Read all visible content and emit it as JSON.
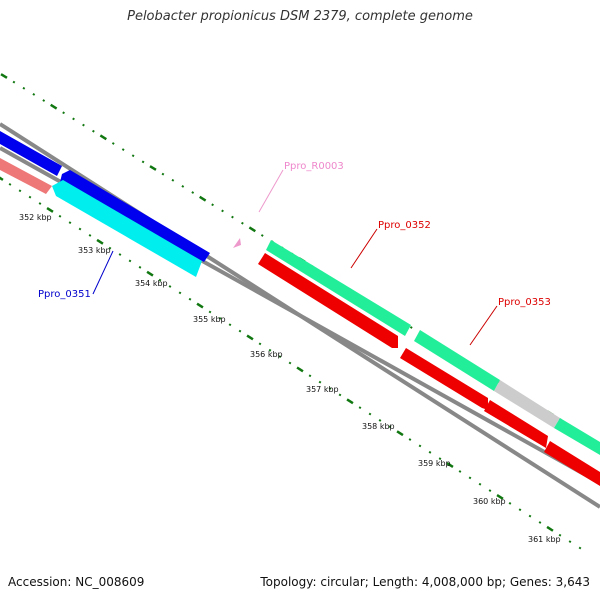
{
  "title": "Pelobacter propionicus DSM 2379, complete genome",
  "footer": {
    "accession": "Accession: NC_008609",
    "summary": "Topology: circular; Length: 4,008,000 bp; Genes: 3,643"
  },
  "ticks": [
    {
      "label": "352 kbp"
    },
    {
      "label": "353 kbp"
    },
    {
      "label": "354 kbp"
    },
    {
      "label": "355 kbp"
    },
    {
      "label": "356 kbp"
    },
    {
      "label": "357 kbp"
    },
    {
      "label": "358 kbp"
    },
    {
      "label": "359 kbp"
    },
    {
      "label": "360 kbp"
    },
    {
      "label": "361 kbp"
    }
  ],
  "genes": [
    {
      "label": "Ppro_R0003",
      "color": "#ee88cc"
    },
    {
      "label": "Ppro_0352",
      "color": "#dd0000"
    },
    {
      "label": "Ppro_0353",
      "color": "#dd0000"
    },
    {
      "label": "Ppro_0351",
      "color": "#0000cc"
    }
  ],
  "colors": {
    "backbone": "#808080",
    "tick": "#117711",
    "blue": "#0000ee",
    "cyan": "#00eeee",
    "salmon": "#ee7777",
    "seagreen": "#22ee99",
    "red": "#ee0000",
    "gray": "#cccccc",
    "pink": "#ee99cc"
  }
}
